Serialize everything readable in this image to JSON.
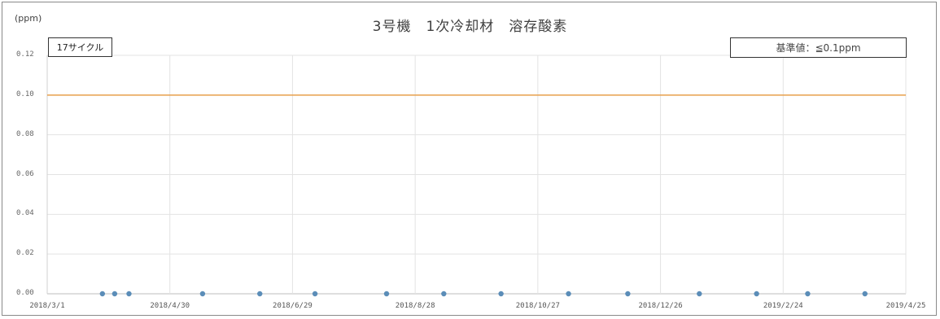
{
  "chart_data": {
    "type": "scatter",
    "title": "3号機　1次冷却材　溶存酸素",
    "ylabel": "(ppm)",
    "cycle_label": "17サイクル",
    "standard_label": "基準値：≦0.1ppm",
    "ylim": [
      0,
      0.12
    ],
    "y_ticks": [
      "0.00",
      "0.02",
      "0.04",
      "0.06",
      "0.08",
      "0.10",
      "0.12"
    ],
    "xlim": [
      "2018/3/1",
      "2019/4/25"
    ],
    "x_ticks": [
      "2018/3/1",
      "2018/4/30",
      "2018/6/29",
      "2018/8/28",
      "2018/10/27",
      "2018/12/26",
      "2019/2/24",
      "2019/4/25"
    ],
    "reference_line": {
      "value": 0.1,
      "color": "#e8a04c"
    },
    "grid": true,
    "series": [
      {
        "color": "#5b8db8",
        "points": [
          {
            "x": "2018/3/28",
            "y": 0.0
          },
          {
            "x": "2018/4/3",
            "y": 0.0
          },
          {
            "x": "2018/4/10",
            "y": 0.0
          },
          {
            "x": "2018/5/16",
            "y": 0.0
          },
          {
            "x": "2018/6/13",
            "y": 0.0
          },
          {
            "x": "2018/7/10",
            "y": 0.0
          },
          {
            "x": "2018/8/14",
            "y": 0.0
          },
          {
            "x": "2018/9/11",
            "y": 0.0
          },
          {
            "x": "2018/10/9",
            "y": 0.0
          },
          {
            "x": "2018/11/11",
            "y": 0.0
          },
          {
            "x": "2018/12/10",
            "y": 0.0
          },
          {
            "x": "2019/1/14",
            "y": 0.0
          },
          {
            "x": "2019/2/11",
            "y": 0.0
          },
          {
            "x": "2019/3/8",
            "y": 0.0
          },
          {
            "x": "2019/4/5",
            "y": 0.0
          }
        ]
      }
    ]
  }
}
